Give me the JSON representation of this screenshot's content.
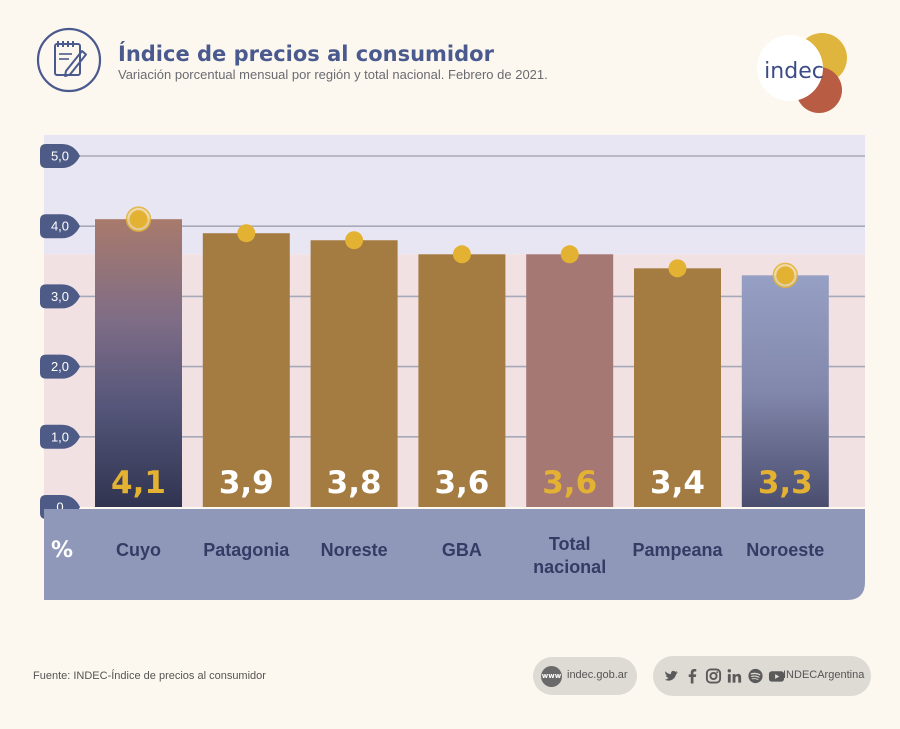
{
  "header": {
    "title": "Índice de precios al consumidor",
    "subtitle": "Variación porcentual mensual por región y total nacional. Febrero de 2021.",
    "icon": "notepad-pencil-icon"
  },
  "logo": {
    "text": "indec",
    "colors": [
      "#e0b53d",
      "#b85c43",
      "#3d4c86"
    ]
  },
  "chart_data": {
    "type": "bar",
    "unit_label": "%",
    "categories": [
      [
        "Cuyo"
      ],
      [
        "Patagonia"
      ],
      [
        "Noreste"
      ],
      [
        "GBA"
      ],
      [
        "Total",
        "nacional"
      ],
      [
        "Pampeana"
      ],
      [
        "Noroeste"
      ]
    ],
    "values": [
      4.1,
      3.9,
      3.8,
      3.6,
      3.6,
      3.4,
      3.3
    ],
    "value_labels": [
      "4,1",
      "3,9",
      "3,8",
      "3,6",
      "3,6",
      "3,4",
      "3,3"
    ],
    "highlight": [
      "max",
      "",
      "",
      "",
      "",
      "",
      "min"
    ],
    "ylim": [
      0,
      5
    ],
    "yticks": [
      0,
      1,
      2,
      3,
      4,
      5
    ],
    "ytick_labels": [
      "0",
      "1,0",
      "2,0",
      "3,0",
      "4,0",
      "5,0"
    ],
    "grid": true,
    "reference_line": 3.6,
    "colors": {
      "bar": "#a47c42",
      "total_bar": "#a67873",
      "dot": "#e3b232",
      "label_light": "#ffffff",
      "label_accent": "#e3b232",
      "band_upper": "#e9e6f3",
      "band_lower": "#f1e1e3",
      "footer": "#8f98b9",
      "tick_badge": "#4e5b86"
    }
  },
  "footer": {
    "source": "Fuente: INDEC-Índice de precios al consumidor",
    "web_badge": "www",
    "website": "indec.gob.ar",
    "social_handle": "INDECArgentina",
    "social_icons": [
      "twitter-icon",
      "facebook-icon",
      "instagram-icon",
      "linkedin-icon",
      "spotify-icon",
      "youtube-icon"
    ]
  }
}
